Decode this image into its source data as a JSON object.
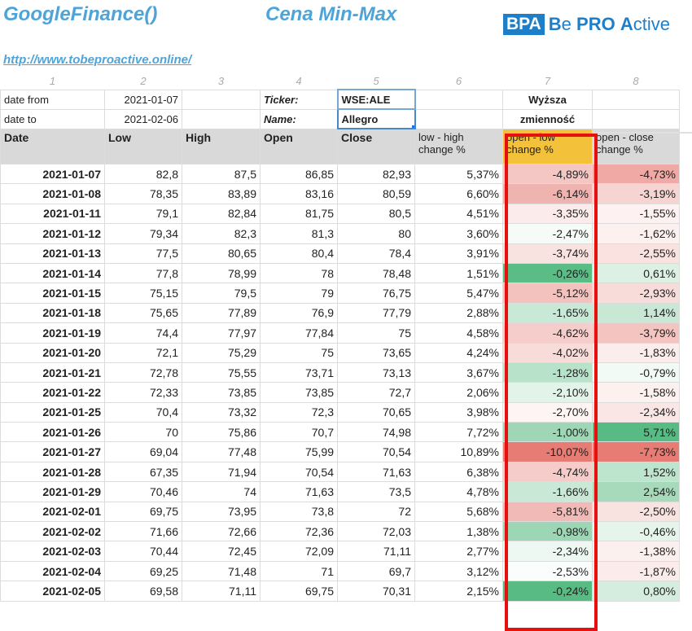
{
  "header": {
    "title_left": "GoogleFinance()",
    "title_mid": "Cena Min-Max",
    "logo_box": "BPA",
    "logo_words": [
      {
        "cap": "B",
        "rest": "e "
      },
      {
        "cap": "PRO",
        "rest": " "
      },
      {
        "cap": "A",
        "rest": "ctive"
      }
    ],
    "link": "http://www.tobeproactive.online/"
  },
  "col_numbers": [
    "1",
    "2",
    "3",
    "4",
    "5",
    "6",
    "7",
    "8"
  ],
  "meta": {
    "date_from_label": "date from",
    "date_from": "2021-01-07",
    "date_to_label": "date to",
    "date_to": "2021-02-06",
    "ticker_label": "Ticker:",
    "ticker": "WSE:ALE",
    "name_label": "Name:",
    "name": "Allegro",
    "note_line1": "Wyższa",
    "note_line2": "zmienność"
  },
  "columns": [
    "Date",
    "Low",
    "High",
    "Open",
    "Close",
    "low - high change %",
    "open - low change %",
    "open - close change %"
  ],
  "colors": {
    "header_bg": "#d9d9d9",
    "highlight_header": "#f4c23a",
    "red_box": "#e8100f",
    "link": "#4ea4d8"
  },
  "rows": [
    {
      "date": "2021-01-07",
      "low": "82,8",
      "high": "87,5",
      "open": "86,85",
      "close": "82,93",
      "lh": "5,37%",
      "ol": "-4,89%",
      "oc": "-4,73%",
      "ol_bg": "#f4c7c4",
      "oc_bg": "#f0a9a4"
    },
    {
      "date": "2021-01-08",
      "low": "78,35",
      "high": "83,89",
      "open": "83,16",
      "close": "80,59",
      "lh": "6,60%",
      "ol": "-6,14%",
      "oc": "-3,19%",
      "ol_bg": "#f0b4b0",
      "oc_bg": "#f5d4d1"
    },
    {
      "date": "2021-01-11",
      "low": "79,1",
      "high": "82,84",
      "open": "81,75",
      "close": "80,5",
      "lh": "4,51%",
      "ol": "-3,35%",
      "oc": "-1,55%",
      "ol_bg": "#fbeceb",
      "oc_bg": "#fdf2f1"
    },
    {
      "date": "2021-01-12",
      "low": "79,34",
      "high": "82,3",
      "open": "81,3",
      "close": "80",
      "lh": "3,60%",
      "ol": "-2,47%",
      "oc": "-1,62%",
      "ol_bg": "#f5fbf7",
      "oc_bg": "#fdf1f0"
    },
    {
      "date": "2021-01-13",
      "low": "77,5",
      "high": "80,65",
      "open": "80,4",
      "close": "78,4",
      "lh": "3,91%",
      "ol": "-3,74%",
      "oc": "-2,55%",
      "ol_bg": "#f9e3e1",
      "oc_bg": "#f9e2e0"
    },
    {
      "date": "2021-01-14",
      "low": "77,8",
      "high": "78,99",
      "open": "78",
      "close": "78,48",
      "lh": "1,51%",
      "ol": "-0,26%",
      "oc": "0,61%",
      "ol_bg": "#5bbd86",
      "oc_bg": "#dcf0e4"
    },
    {
      "date": "2021-01-15",
      "low": "75,15",
      "high": "79,5",
      "open": "79",
      "close": "76,75",
      "lh": "5,47%",
      "ol": "-5,12%",
      "oc": "-2,93%",
      "ol_bg": "#f3c2bf",
      "oc_bg": "#f7dcd9"
    },
    {
      "date": "2021-01-18",
      "low": "75,65",
      "high": "77,89",
      "open": "76,9",
      "close": "77,79",
      "lh": "2,88%",
      "ol": "-1,65%",
      "oc": "1,14%",
      "ol_bg": "#c9e9d7",
      "oc_bg": "#c8e8d5"
    },
    {
      "date": "2021-01-19",
      "low": "74,4",
      "high": "77,97",
      "open": "77,84",
      "close": "75",
      "lh": "4,58%",
      "ol": "-4,62%",
      "oc": "-3,79%",
      "ol_bg": "#f5cecb",
      "oc_bg": "#f3c4c0"
    },
    {
      "date": "2021-01-20",
      "low": "72,1",
      "high": "75,29",
      "open": "75",
      "close": "73,65",
      "lh": "4,24%",
      "ol": "-4,02%",
      "oc": "-1,83%",
      "ol_bg": "#f8dcda",
      "oc_bg": "#fbedeb"
    },
    {
      "date": "2021-01-21",
      "low": "72,78",
      "high": "75,55",
      "open": "73,71",
      "close": "73,13",
      "lh": "3,67%",
      "ol": "-1,28%",
      "oc": "-0,79%",
      "ol_bg": "#b8e2ca",
      "oc_bg": "#f2faf5"
    },
    {
      "date": "2021-01-22",
      "low": "72,33",
      "high": "73,85",
      "open": "73,85",
      "close": "72,7",
      "lh": "2,06%",
      "ol": "-2,10%",
      "oc": "-1,58%",
      "ol_bg": "#e2f3e9",
      "oc_bg": "#fdf1f0"
    },
    {
      "date": "2021-01-25",
      "low": "70,4",
      "high": "73,32",
      "open": "72,3",
      "close": "70,65",
      "lh": "3,98%",
      "ol": "-2,70%",
      "oc": "-2,34%",
      "ol_bg": "#fdf4f3",
      "oc_bg": "#fae6e4"
    },
    {
      "date": "2021-01-26",
      "low": "70",
      "high": "75,86",
      "open": "70,7",
      "close": "74,98",
      "lh": "7,72%",
      "ol": "-1,00%",
      "oc": "5,71%",
      "ol_bg": "#9fd7b6",
      "oc_bg": "#57bb83"
    },
    {
      "date": "2021-01-27",
      "low": "69,04",
      "high": "77,48",
      "open": "75,99",
      "close": "70,54",
      "lh": "10,89%",
      "ol": "-10,07%",
      "oc": "-7,73%",
      "ol_bg": "#e67c73",
      "oc_bg": "#e67c73"
    },
    {
      "date": "2021-01-28",
      "low": "67,35",
      "high": "71,94",
      "open": "70,54",
      "close": "71,63",
      "lh": "6,38%",
      "ol": "-4,74%",
      "oc": "1,52%",
      "ol_bg": "#f5ccc9",
      "oc_bg": "#bde4cd"
    },
    {
      "date": "2021-01-29",
      "low": "70,46",
      "high": "74",
      "open": "71,63",
      "close": "73,5",
      "lh": "4,78%",
      "ol": "-1,66%",
      "oc": "2,54%",
      "ol_bg": "#c9e9d6",
      "oc_bg": "#a6dabb"
    },
    {
      "date": "2021-02-01",
      "low": "69,75",
      "high": "73,95",
      "open": "73,8",
      "close": "72",
      "lh": "5,68%",
      "ol": "-5,81%",
      "oc": "-2,50%",
      "ol_bg": "#f2bab6",
      "oc_bg": "#f9e3e1"
    },
    {
      "date": "2021-02-02",
      "low": "71,66",
      "high": "72,66",
      "open": "72,36",
      "close": "72,03",
      "lh": "1,38%",
      "ol": "-0,98%",
      "oc": "-0,46%",
      "ol_bg": "#9dd6b4",
      "oc_bg": "#e6f5ec"
    },
    {
      "date": "2021-02-03",
      "low": "70,44",
      "high": "72,45",
      "open": "72,09",
      "close": "71,11",
      "lh": "2,77%",
      "ol": "-2,34%",
      "oc": "-1,38%",
      "ol_bg": "#eef8f2",
      "oc_bg": "#fcf0ef"
    },
    {
      "date": "2021-02-04",
      "low": "69,25",
      "high": "71,48",
      "open": "71",
      "close": "69,7",
      "lh": "3,12%",
      "ol": "-2,53%",
      "oc": "-1,87%",
      "ol_bg": "#fbfdfc",
      "oc_bg": "#fbecea"
    },
    {
      "date": "2021-02-05",
      "low": "69,58",
      "high": "71,11",
      "open": "69,75",
      "close": "70,31",
      "lh": "2,15%",
      "ol": "-0,24%",
      "oc": "0,80%",
      "ol_bg": "#57bb83",
      "oc_bg": "#d5eddf"
    }
  ]
}
